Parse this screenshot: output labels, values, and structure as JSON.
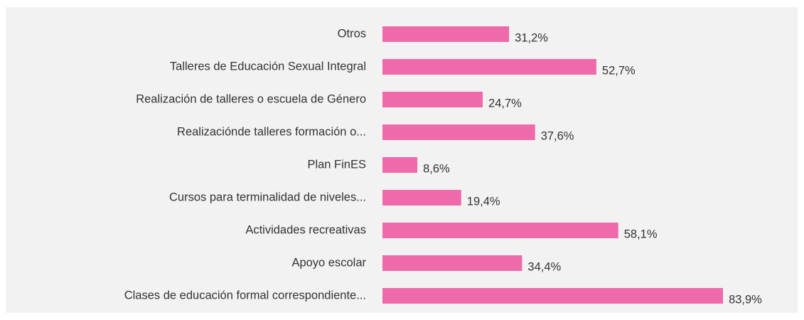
{
  "chart_data": {
    "type": "hbar",
    "categories": [
      "Otros",
      "Talleres de Educación Sexual Integral",
      "Realización de talleres o escuela de Género",
      "Realizaciónde talleres formación o...",
      "Plan FinES",
      "Cursos para terminalidad de niveles...",
      "Actividades recreativas",
      "Apoyo escolar",
      "Clases de educación formal correspondiente..."
    ],
    "values": [
      31.2,
      52.7,
      24.7,
      37.6,
      8.6,
      19.4,
      58.1,
      34.4,
      83.9
    ],
    "value_labels": [
      "31,2%",
      "52,7%",
      "24,7%",
      "37,6%",
      "8,6%",
      "19,4%",
      "58,1%",
      "34,4%",
      "83,9%"
    ],
    "color": "#ee6aab"
  }
}
